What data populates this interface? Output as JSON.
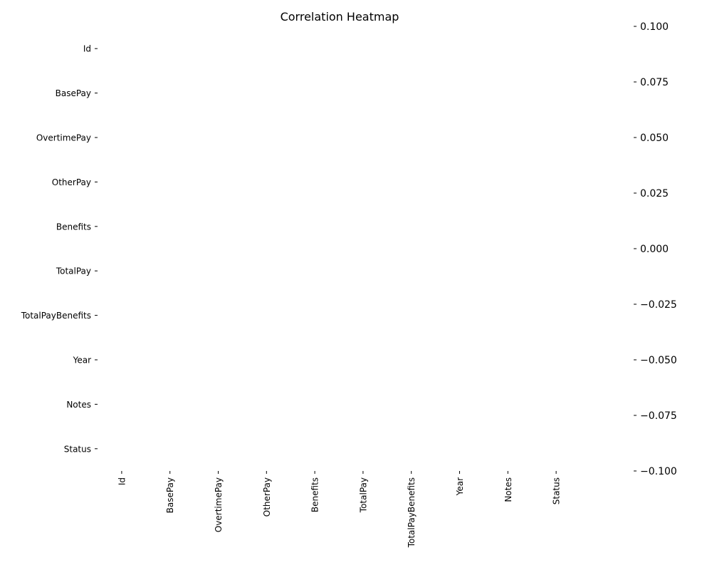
{
  "chart_data": {
    "type": "heatmap",
    "title": "Correlation Heatmap",
    "row_labels": [
      "Id",
      "BasePay",
      "OvertimePay",
      "OtherPay",
      "Benefits",
      "TotalPay",
      "TotalPayBenefits",
      "Year",
      "Notes",
      "Status"
    ],
    "column_labels": [
      "Id",
      "BasePay",
      "OvertimePay",
      "OtherPay",
      "Benefits",
      "TotalPay",
      "TotalPayBenefits",
      "Year",
      "Notes",
      "Status"
    ],
    "values": [],
    "colorbar": {
      "range": [
        -0.1,
        0.1
      ],
      "ticks": [
        "0.100",
        "0.075",
        "0.050",
        "0.025",
        "0.000",
        "−0.025",
        "−0.050",
        "−0.075",
        "−0.100"
      ]
    },
    "grid": false,
    "legend": "colorbar-right"
  }
}
